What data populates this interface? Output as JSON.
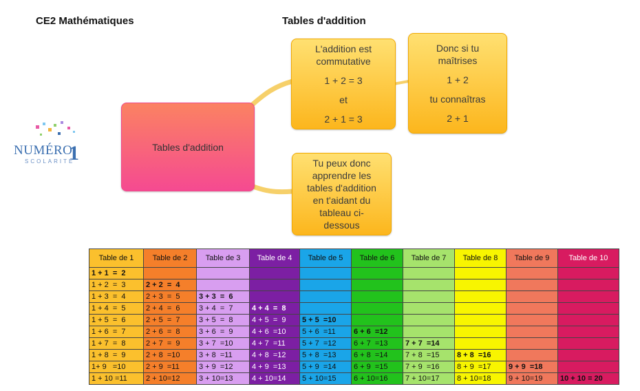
{
  "header": {
    "subject": "CE2 Mathématiques",
    "title": "Tables d'addition"
  },
  "logo": {
    "name": "NUMÉRO",
    "suffix": "1",
    "tagline": "SCOLARITÉ"
  },
  "mindmap": {
    "central": "Tables d'addition",
    "bubble1": {
      "lines": [
        "L'addition est",
        "commutative",
        "1 + 2 = 3",
        "et",
        "2 + 1 = 3"
      ]
    },
    "bubble2": {
      "lines": [
        "Donc si tu",
        "maîtrises",
        "1 + 2",
        "tu connaîtras",
        "2 + 1"
      ]
    },
    "bubble3": {
      "lines": [
        "Tu peux donc",
        "apprendre les",
        "tables d'addition",
        "en t'aidant du",
        "tableau ci-",
        "dessous"
      ]
    }
  },
  "table": {
    "headers": [
      "Table de 1",
      "Table de 2",
      "Table de 3",
      "Table de 4",
      "Table de 5",
      "Table de 6",
      "Table de 7",
      "Table de 8",
      "Table de 9",
      "Table de 10"
    ],
    "colors": [
      "#fbc02d",
      "#f57f2a",
      "#d89ef0",
      "#7c1fa3",
      "#1aa5e8",
      "#22c21c",
      "#a6e36c",
      "#f8f500",
      "#f0785c",
      "#d81b60"
    ],
    "rows": [
      [
        "1 + 1  =  2",
        "",
        "",
        "",
        "",
        "",
        "",
        "",
        "",
        ""
      ],
      [
        "1 + 2  =  3",
        "2 + 2  =  4",
        "",
        "",
        "",
        "",
        "",
        "",
        "",
        ""
      ],
      [
        "1 + 3  =  4",
        "2 + 3  =  5",
        "3 + 3  =  6",
        "",
        "",
        "",
        "",
        "",
        "",
        ""
      ],
      [
        "1 + 4  =  5",
        "2 + 4  =  6",
        "3 + 4  =  7",
        "4 + 4  =  8",
        "",
        "",
        "",
        "",
        "",
        ""
      ],
      [
        "1 + 5  =  6",
        "2 + 5  =  7",
        "3 + 5  =  8",
        "4 + 5  =  9",
        "5 + 5  =10",
        "",
        "",
        "",
        "",
        ""
      ],
      [
        "1 + 6  =  7",
        "2 + 6  =  8",
        "3 + 6  =  9",
        "4 + 6  =10",
        "5 + 6  =11",
        "6 + 6  =12",
        "",
        "",
        "",
        ""
      ],
      [
        "1 + 7  =  8",
        "2 + 7  =  9",
        "3 + 7  =10",
        "4 + 7  =11",
        "5 + 7  =12",
        "6 + 7  =13",
        "7 + 7  =14",
        "",
        "",
        ""
      ],
      [
        "1 + 8  =  9",
        "2 + 8  =10",
        "3 + 8  =11",
        "4 + 8  =12",
        "5 + 8  =13",
        "6 + 8  =14",
        "7 + 8  =15",
        "8 + 8  =16",
        "",
        ""
      ],
      [
        "1+ 9   =10",
        "2 + 9  =11",
        "3 + 9  =12",
        "4 + 9  =13",
        "5 + 9  =14",
        "6 + 9  =15",
        "7 + 9  =16",
        "8 + 9  =17",
        "9 + 9  =18",
        ""
      ],
      [
        "1 + 10 =11",
        "2 + 10=12",
        "3 + 10=13",
        "4 + 10=14",
        "5 + 10=15",
        "6 + 10=16",
        "7 + 10=17",
        "8 + 10=18",
        "9 + 10=19",
        "10 + 10 = 20"
      ]
    ]
  }
}
